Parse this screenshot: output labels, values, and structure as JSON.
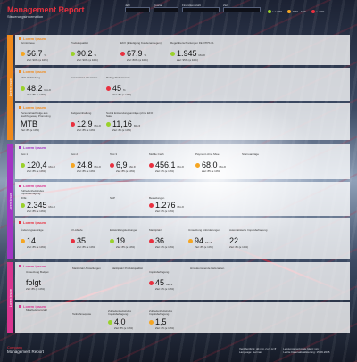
{
  "header": {
    "title": "Management Report",
    "subtitle": "Steuerungsinformation",
    "filters": [
      {
        "label": "Jahr",
        "value": ""
      },
      {
        "label": "Quartal",
        "value": ""
      },
      {
        "label": "Finanzkennzahl",
        "value": ""
      },
      {
        "label": "Ziel",
        "value": ""
      }
    ],
    "legend": [
      {
        "label": "> = 10%",
        "color": "#9ad12b"
      },
      {
        "label": "-80% - 10%",
        "color": "#f5a623"
      },
      {
        "label": "< -80%",
        "color": "#e8303f"
      }
    ]
  },
  "colors": {
    "green": "#9ad12b",
    "orange": "#f5a623",
    "red": "#e8303f",
    "purple": "#a335c4",
    "pink": "#d9358f",
    "tab_orange": "#f08a1c"
  },
  "sections": [
    {
      "tab": "Lorem ipsum",
      "blocks": [
        {
          "title": "Lorem ipsum",
          "kpis": [
            {
              "label": "Termintreue",
              "value": "56,7",
              "unit": "%",
              "target": "Ziel: 90% (≥ 10%)",
              "status": "orange"
            },
            {
              "label": "Produktqualität",
              "value": "90,2",
              "unit": "%",
              "target": "Ziel: 90% (≥ 10%)",
              "status": "green"
            },
            {
              "label": "EKV (Erledigung Kundenanliegen)",
              "value": "67,9",
              "unit": "%",
              "target": "Ziel: 80% (≥ 10%)",
              "status": "red"
            },
            {
              "label": "Regelüberschreitungen FE DTPS 01",
              "value": "1.945",
              "unit": "Mio €",
              "target": "Ziel: 95% (≥ 10%)",
              "status": "green"
            }
          ]
        },
        {
          "title": "Lorem ipsum",
          "kpis": [
            {
              "label": "EKV-Vorbindung",
              "value": "48,2",
              "unit": "Mio €",
              "target": "Ziel: 85 (≥ 10%)",
              "status": "green"
            },
            {
              "label": "Konzentrat Lieferanten",
              "value": "",
              "unit": "",
              "target": "",
              "status": ""
            },
            {
              "label": "Rating-Performance",
              "value": "45",
              "unit": "%",
              "target": "Ziel: 85 (≥ 10%)",
              "status": "red"
            }
          ]
        },
        {
          "title": "Lorem ipsum",
          "kpis": [
            {
              "label": "Personalnachfolge aus Nachfolgeweg Promoting",
              "value": "MTB",
              "unit": "",
              "target": "Ziel: 85 (≥ 10%)",
              "status": ""
            },
            {
              "label": "Budgeteinhaltung",
              "value": "12,9",
              "unit": "Mio €",
              "target": "Ziel: 85 (≥ 10%)",
              "status": "red"
            },
            {
              "label": "Sozial Entsendungsanträge (ohne EFO Sale)",
              "value": "11,16",
              "unit": "Mio €",
              "target": "Ziel: 85 (≥ 10%)",
              "status": "green"
            }
          ]
        }
      ]
    },
    {
      "tab": "Lorem ipsum",
      "blocks": [
        {
          "title": "Lorem ipsum",
          "kpis": [
            {
              "label": "Test 1",
              "value": "120,4",
              "unit": "Mio €",
              "target": "Ziel: 85 (≥ 10%)",
              "status": "green"
            },
            {
              "label": "Test 2",
              "value": "24,8",
              "unit": "Mio €",
              "target": "Ziel: 85 (≥ 10%)",
              "status": "orange"
            },
            {
              "label": "Test 3",
              "value": "6,9",
              "unit": "Mio €",
              "target": "Ziel: 85 (≥ 10%)",
              "status": "red"
            },
            {
              "label": "Mobile Cash",
              "value": "456,1",
              "unit": "Mio €",
              "target": "Ziel: 85 (≥ 10%)",
              "status": "red"
            },
            {
              "label": "Payment ohne Mwe",
              "value": "68,0",
              "unit": "Mio €",
              "target": "Ziel: 85 (≥ 10%)",
              "status": "orange"
            },
            {
              "label": "Stornoanträge",
              "value": "",
              "unit": "",
              "target": "",
              "status": ""
            }
          ]
        },
        {
          "title": "Lorem ipsum",
          "kpis": [
            {
              "label": "Zufriedenheitsindex Impulsbefragung",
              "value": "",
              "unit": "",
              "target": "",
              "status": ""
            },
            {
              "label": "ROE",
              "value": "2.345",
              "unit": "Mio €",
              "target": "Ziel: 85 (≥ 10%)",
              "status": "green"
            },
            {
              "label": "SAP",
              "value": "",
              "unit": "",
              "target": "",
              "status": ""
            },
            {
              "label": "Bestellungen",
              "value": "1.276",
              "unit": "Mio €",
              "target": "Ziel: 85 (≥ 10%)",
              "status": "red"
            }
          ]
        },
        {
          "title": "Lorem ipsum",
          "kpis": [
            {
              "label": "Änderungsaufträge",
              "value": "14",
              "unit": "",
              "target": "Ziel: 85 (≥ 10%)",
              "status": "orange"
            },
            {
              "label": "KV-Abrufe",
              "value": "35",
              "unit": "",
              "target": "Ziel: 85 (≥ 10%)",
              "status": "red"
            },
            {
              "label": "Entwicklungsleistungen",
              "value": "19",
              "unit": "",
              "target": "Ziel: 85 (≥ 10%)",
              "status": "green"
            },
            {
              "label": "Marktplatz",
              "value": "36",
              "unit": "",
              "target": "Ziel: 85 (≥ 10%)",
              "status": "red"
            },
            {
              "label": "Umsetzung Anforderungen",
              "value": "94",
              "unit": "Mio €",
              "target": "Ziel: 85 (≥ 10%)",
              "status": "orange"
            },
            {
              "label": "Automatisierte Impulsbefragung",
              "value": "22",
              "unit": "",
              "target": "Ziel: 85 (≥ 10%)",
              "status": ""
            }
          ]
        }
      ]
    },
    {
      "tab": "Lorem ipsum",
      "blocks": [
        {
          "title": "Lorem ipsum",
          "kpis": [
            {
              "label": "Umsetzung Budget",
              "value": "folgt",
              "unit": "",
              "target": "Ziel: 85 (≥ 10%)",
              "status": ""
            },
            {
              "label": "Marktplatz Abstellungen",
              "value": "",
              "unit": "",
              "target": "",
              "status": ""
            },
            {
              "label": "Marktplatz Produktqualität",
              "value": "",
              "unit": "",
              "target": "",
              "status": ""
            },
            {
              "label": "Impulsbefragung",
              "value": "45",
              "unit": "Mio €",
              "target": "Ziel: 85 (≥ 10%)",
              "status": "red"
            },
            {
              "label": "Hinzukommende Lieferanten",
              "value": "",
              "unit": "",
              "target": "",
              "status": ""
            }
          ]
        },
        {
          "title": "Lorem ipsum",
          "kpis": [
            {
              "label": "Mitarbeiteramzahl",
              "value": "",
              "unit": "",
              "target": "",
              "status": ""
            },
            {
              "label": "Teilnahmequote",
              "value": "",
              "unit": "",
              "target": "",
              "status": ""
            },
            {
              "label": "Zufriedenheitsindex Impulsbefragung",
              "value": "4,0",
              "unit": "",
              "target": "Ziel: 85 (≥ 10%)",
              "status": "green"
            },
            {
              "label": "Zufriedenheitsindex Impulsbefragung",
              "value": "1,5",
              "unit": "",
              "target": "Ziel: 85 (≥ 10%)",
              "status": "orange"
            }
          ]
        }
      ]
    }
  ],
  "footer": {
    "brand": "Company",
    "name": "Management Report",
    "left_lines": [
      "Veröffentlicht: dd.mm.yyyy cc:ff",
      "Language: German"
    ],
    "right_lines": [
      "Leistungsmerkmale Ident: xxx",
      "Letzte Datenaktualisierung: 15.06.2015"
    ]
  }
}
